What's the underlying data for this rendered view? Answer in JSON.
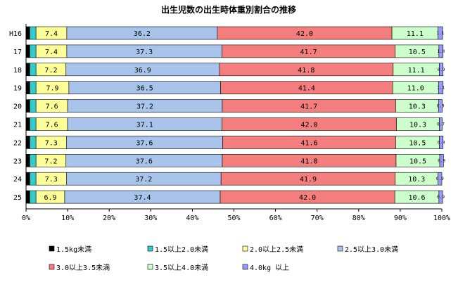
{
  "chart_data": {
    "type": "bar",
    "orientation": "horizontal",
    "stacked": "percent",
    "title": "出生児数の出生時体重別割合の推移",
    "categories": [
      "H16",
      "17",
      "18",
      "19",
      "20",
      "21",
      "22",
      "23",
      "24",
      "25"
    ],
    "xlim": [
      0,
      100
    ],
    "x_ticks": [
      "0%",
      "10%",
      "20%",
      "30%",
      "40%",
      "50%",
      "60%",
      "70%",
      "80%",
      "90%",
      "100%"
    ],
    "grid": false,
    "legend_position": "bottom",
    "series": [
      {
        "name": "1.5kg未満",
        "color": "#000000",
        "values": [
          0.9,
          0.9,
          0.9,
          0.9,
          0.9,
          0.9,
          0.9,
          0.9,
          0.9,
          0.9
        ],
        "labels": [
          "",
          "",
          "",
          "",
          "",
          "",
          "",
          "",
          "",
          ""
        ]
      },
      {
        "name": "1.5以上2.0未満",
        "color": "#33cccc",
        "values": [
          1.5,
          1.5,
          1.5,
          1.5,
          1.5,
          1.5,
          1.5,
          1.5,
          1.5,
          1.5
        ],
        "labels": [
          "",
          "",
          "",
          "",
          "",
          "",
          "",
          "",
          "",
          ""
        ]
      },
      {
        "name": "2.0以上2.5未満",
        "color": "#ffff99",
        "values": [
          7.4,
          7.4,
          7.2,
          7.9,
          7.6,
          7.6,
          7.3,
          7.2,
          7.3,
          6.9
        ],
        "labels": [
          "7.4",
          "7.4",
          "7.2",
          "7.9",
          "7.6",
          "7.6",
          "7.3",
          "7.2",
          "7.3",
          "6.9"
        ]
      },
      {
        "name": "2.5以上3.0未満",
        "color": "#a9c4ea",
        "values": [
          36.2,
          37.3,
          36.9,
          36.5,
          37.2,
          37.1,
          37.6,
          37.6,
          37.2,
          37.4
        ],
        "labels": [
          "36.2",
          "37.3",
          "36.9",
          "36.5",
          "37.2",
          "37.1",
          "37.6",
          "37.6",
          "37.2",
          "37.4"
        ]
      },
      {
        "name": "3.0以上3.5未満",
        "color": "#f47d7d",
        "values": [
          42.0,
          41.7,
          41.8,
          41.4,
          41.7,
          42.0,
          41.6,
          41.8,
          41.9,
          42.0
        ],
        "labels": [
          "42.0",
          "41.7",
          "41.8",
          "41.4",
          "41.7",
          "42.0",
          "41.6",
          "41.8",
          "41.9",
          "42.0"
        ]
      },
      {
        "name": "3.5以上4.0未満",
        "color": "#ccffcc",
        "values": [
          11.1,
          10.5,
          11.1,
          11.0,
          10.3,
          10.3,
          10.5,
          10.5,
          10.3,
          10.6
        ],
        "labels": [
          "11.1",
          "10.5",
          "11.1",
          "11.0",
          "10.3",
          "10.3",
          "10.5",
          "10.5",
          "10.3",
          "10.6"
        ]
      },
      {
        "name": "4.0kg 以上",
        "color": "#9999ff",
        "values": [
          1.1,
          1.0,
          0.9,
          1.1,
          0.9,
          0.7,
          0.9,
          0.9,
          0.9,
          0.9
        ],
        "labels": [
          "1.1",
          "1.0",
          "0.9",
          "1.1",
          "0.9",
          "0.7",
          "0.9",
          "0.9",
          "0.9",
          "0.9"
        ]
      }
    ]
  }
}
